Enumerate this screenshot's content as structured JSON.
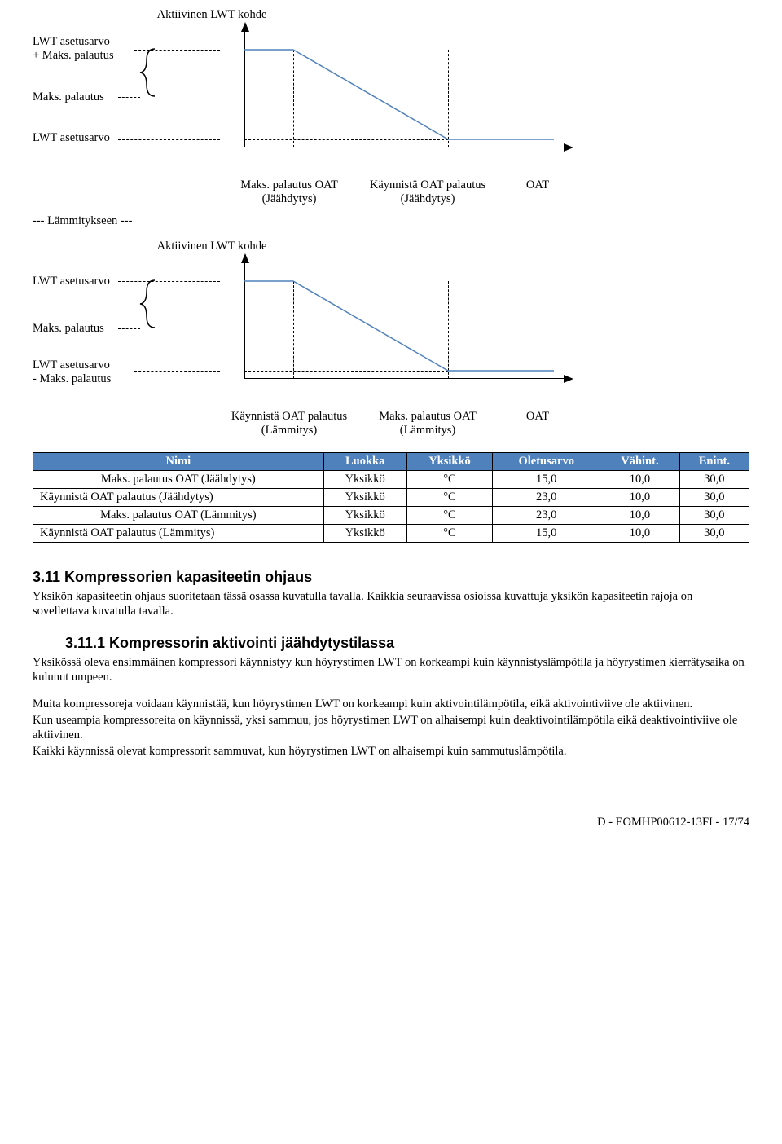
{
  "chart1": {
    "title": "Aktiivinen LWT kohde",
    "ylabels": [
      "LWT asetusarvo\n+ Maks. palautus",
      "Maks. palautus",
      "LWT asetusarvo"
    ],
    "xlabels": [
      "Maks. palautus OAT (Jäähdytys)",
      "Käynnistä OAT palautus (Jäähdytys)",
      "OAT"
    ],
    "line_color": "#4f81bc",
    "axis_color": "#000000"
  },
  "heating_divider": "--- Lämmitykseen ---",
  "chart2": {
    "title": "Aktiivinen LWT kohde",
    "ylabels": [
      "LWT asetusarvo",
      "Maks. palautus",
      "LWT asetusarvo\n - Maks. palautus"
    ],
    "xlabels": [
      "Käynnistä OAT palautus (Lämmitys)",
      "Maks. palautus OAT (Lämmitys)",
      "OAT"
    ],
    "line_color": "#4f81bc",
    "axis_color": "#000000"
  },
  "table": {
    "headers": [
      "Nimi",
      "Luokka",
      "Yksikkö",
      "Oletusarvo",
      "Vähint.",
      "Enint."
    ],
    "rows": [
      [
        "Maks. palautus OAT (Jäähdytys)",
        "Yksikkö",
        "°C",
        "15,0",
        "10,0",
        "30,0"
      ],
      [
        "Käynnistä OAT palautus (Jäähdytys)",
        "Yksikkö",
        "°C",
        "23,0",
        "10,0",
        "30,0"
      ],
      [
        "Maks. palautus OAT (Lämmitys)",
        "Yksikkö",
        "°C",
        "23,0",
        "10,0",
        "30,0"
      ],
      [
        "Käynnistä OAT palautus (Lämmitys)",
        "Yksikkö",
        "°C",
        "15,0",
        "10,0",
        "30,0"
      ]
    ],
    "header_bg": "#4f81bc",
    "header_fg": "#ffffff"
  },
  "section_311": {
    "heading": "3.11 Kompressorien kapasiteetin ohjaus",
    "body": "Yksikön kapasiteetin ohjaus suoritetaan tässä osassa kuvatulla tavalla.  Kaikkia seuraavissa osioissa kuvattuja yksikön kapasiteetin rajoja on sovellettava kuvatulla tavalla."
  },
  "section_3111": {
    "heading": "3.11.1 Kompressorin aktivointi jäähdytystilassa",
    "p1": "Yksikössä oleva ensimmäinen kompressori käynnistyy kun höyrystimen LWT on korkeampi kuin käynnistyslämpötila ja höyrystimen kierrätysaika on kulunut umpeen.",
    "p2": "Muita kompressoreja voidaan käynnistää, kun höyrystimen LWT on korkeampi kuin aktivointilämpötila, eikä aktivointiviive ole aktiivinen.",
    "p3": "Kun useampia kompressoreita on käynnissä, yksi sammuu, jos höyrystimen LWT on alhaisempi kuin deaktivointilämpötila eikä deaktivointiviive ole aktiivinen.",
    "p4": "Kaikki käynnissä olevat kompressorit sammuvat, kun höyrystimen LWT on alhaisempi kuin sammutuslämpötila."
  },
  "footer": "D - EOMHP00612-13FI - 17/74"
}
